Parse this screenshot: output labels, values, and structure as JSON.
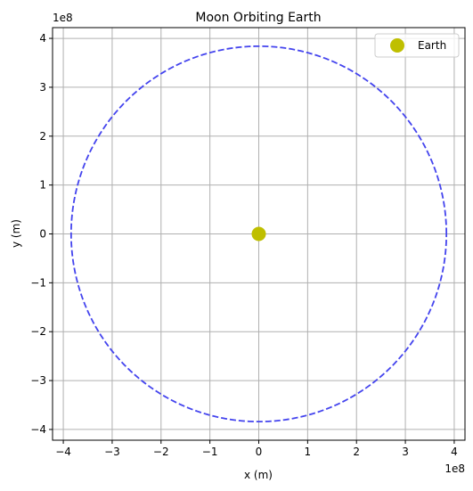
{
  "chart_data": {
    "type": "line",
    "title": "Moon Orbiting Earth",
    "xlabel": "x (m)",
    "ylabel": "y (m)",
    "x_offset_label": "1e8",
    "y_offset_label": "1e8",
    "xlim": [
      -4.22,
      4.22
    ],
    "ylim": [
      -4.22,
      4.22
    ],
    "x_ticks": [
      -4,
      -3,
      -2,
      -1,
      0,
      1,
      2,
      3,
      4
    ],
    "y_ticks": [
      -4,
      -3,
      -2,
      -1,
      0,
      1,
      2,
      3,
      4
    ],
    "x_tick_labels": [
      "−4",
      "−3",
      "−2",
      "−1",
      "0",
      "1",
      "2",
      "3",
      "4"
    ],
    "y_tick_labels": [
      "−4",
      "−3",
      "−2",
      "−1",
      "0",
      "1",
      "2",
      "3",
      "4"
    ],
    "grid": true,
    "legend_position": "top-right",
    "series": [
      {
        "kind": "orbit",
        "shape": "circle",
        "center": [
          0,
          0
        ],
        "radius": 3.84,
        "color": "#4444ee",
        "style": "dashed"
      },
      {
        "kind": "point",
        "name": "Earth",
        "x": 0,
        "y": 0,
        "color": "#bfbf00",
        "marker": "circle"
      }
    ],
    "legend": [
      {
        "label": "Earth",
        "color": "#bfbf00",
        "marker": "circle"
      }
    ]
  }
}
